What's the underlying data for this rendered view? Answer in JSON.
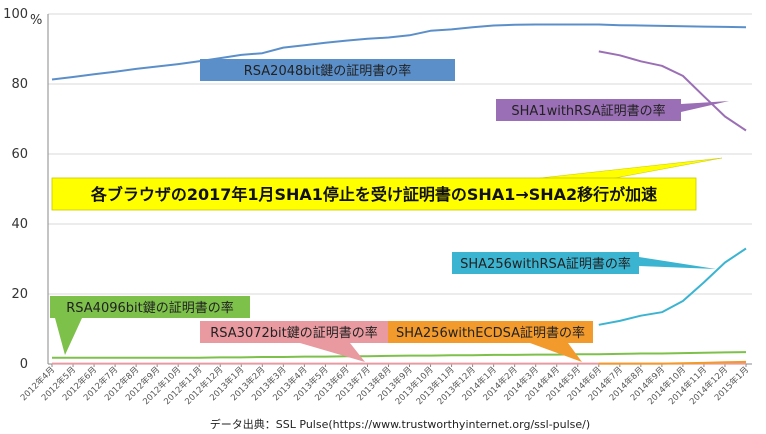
{
  "chart_data": {
    "type": "line",
    "ylabel": "%",
    "ylim": [
      0,
      100
    ],
    "yticks": [
      0,
      20,
      40,
      60,
      80,
      100
    ],
    "grid": true,
    "categories": [
      "2012年4月",
      "2012年5月",
      "2012年6月",
      "2012年7月",
      "2012年8月",
      "2012年9月",
      "2012年10月",
      "2012年11月",
      "2012年12月",
      "2013年1月",
      "2013年2月",
      "2013年3月",
      "2013年4月",
      "2013年5月",
      "2013年6月",
      "2013年7月",
      "2013年8月",
      "2013年9月",
      "2013年10月",
      "2013年11月",
      "2013年12月",
      "2014年1月",
      "2014年2月",
      "2014年3月",
      "2014年4月",
      "2014年5月",
      "2014年6月",
      "2014年7月",
      "2014年8月",
      "2014年9月",
      "2014年10月",
      "2014年11月",
      "2014年12月",
      "2015年1月"
    ],
    "series": [
      {
        "name": "RSA2048bit鍵の証明書の率",
        "color": "#5b8fc9",
        "values": [
          81.3,
          82,
          82.8,
          83.5,
          84.3,
          85,
          85.7,
          86.5,
          87.4,
          88.3,
          88.8,
          90.4,
          91.1,
          91.8,
          92.4,
          92.9,
          93.3,
          93.9,
          95.2,
          95.6,
          96.2,
          96.7,
          96.9,
          97,
          97,
          97,
          97,
          96.8,
          96.7,
          96.6,
          96.5,
          96.4,
          96.3,
          96.2
        ]
      },
      {
        "name": "SHA1withRSA証明書の率",
        "color": "#9b6fb5",
        "values": [
          null,
          null,
          null,
          null,
          null,
          null,
          null,
          null,
          null,
          null,
          null,
          null,
          null,
          null,
          null,
          null,
          null,
          null,
          null,
          null,
          null,
          null,
          null,
          null,
          null,
          null,
          89.3,
          88.2,
          86.5,
          85.2,
          82.3,
          76.5,
          70.7,
          66.7
        ]
      },
      {
        "name": "SHA256withRSA証明書の率",
        "color": "#3bb4d1",
        "values": [
          null,
          null,
          null,
          null,
          null,
          null,
          null,
          null,
          null,
          null,
          null,
          null,
          null,
          null,
          null,
          null,
          null,
          null,
          null,
          null,
          null,
          null,
          null,
          null,
          null,
          null,
          11.2,
          12.3,
          13.8,
          14.8,
          18,
          23.3,
          29,
          33
        ]
      },
      {
        "name": "RSA4096bit鍵の証明書の率",
        "color": "#7dc04a",
        "values": [
          1.8,
          1.8,
          1.8,
          1.8,
          1.8,
          1.8,
          1.8,
          1.8,
          1.9,
          1.9,
          2,
          2,
          2.1,
          2.1,
          2.2,
          2.2,
          2.3,
          2.4,
          2.4,
          2.5,
          2.5,
          2.6,
          2.6,
          2.7,
          2.7,
          2.8,
          2.8,
          2.9,
          3,
          3,
          3.1,
          3.2,
          3.3,
          3.4
        ]
      },
      {
        "name": "RSA3072bit鍵の証明書の率",
        "color": "#e89aa0",
        "values": [
          0.1,
          0.1,
          0.1,
          0.1,
          0.1,
          0.1,
          0.1,
          0.1,
          0.1,
          0.1,
          0.1,
          0.1,
          0.1,
          0.1,
          0.1,
          0.1,
          0.1,
          0.1,
          0.1,
          0.1,
          0.1,
          0.1,
          0.1,
          0.1,
          0.1,
          0.1,
          0.1,
          0.1,
          0.1,
          0.1,
          0.1,
          0.1,
          0.1,
          0.1
        ]
      },
      {
        "name": "SHA256withECDSA証明書の率",
        "color": "#f39a2c",
        "values": [
          null,
          null,
          null,
          null,
          null,
          null,
          null,
          null,
          null,
          null,
          null,
          null,
          null,
          null,
          null,
          null,
          null,
          null,
          null,
          null,
          null,
          null,
          null,
          null,
          null,
          null,
          0.1,
          0.1,
          0.1,
          0.1,
          0.2,
          0.3,
          0.5,
          0.6
        ]
      }
    ],
    "annotations": {
      "banner": "各ブラウザの2017年1月SHA1停止を受け証明書のSHA1→SHA2移行が加速",
      "source": "データ出典：SSL Pulse(https://www.trustworthyinternet.org/ssl-pulse/)"
    },
    "colors": {
      "banner_fill": "#ffff00",
      "grid": "#d9d9d9",
      "axis": "#888888"
    }
  }
}
